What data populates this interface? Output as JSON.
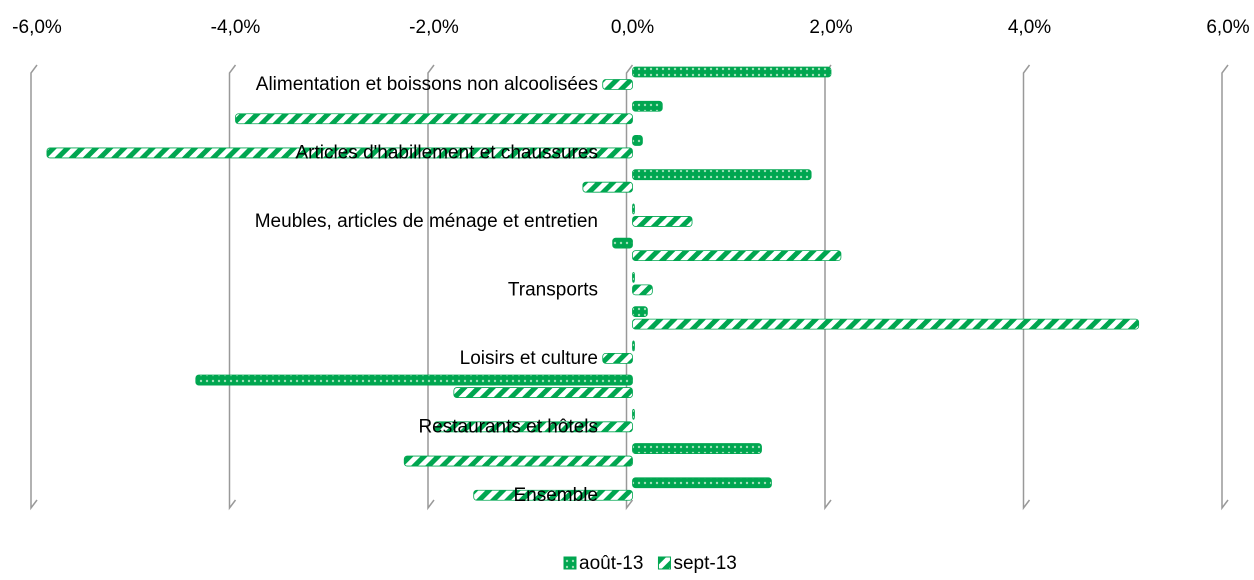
{
  "chart_data": {
    "type": "hbar",
    "categories": [
      "Alimentation et boissons non alcoolisées",
      null,
      "Articles d'habillement et chaussures",
      null,
      "Meubles, articles de ménage et entretien",
      null,
      "Transports",
      null,
      "Loisirs et culture",
      null,
      "Restaurants et hôtels",
      null,
      "Ensemble"
    ],
    "series": [
      {
        "name": "août-13",
        "color": "#00a650",
        "values": [
          2.0,
          0.3,
          0.1,
          1.8,
          0.02,
          -0.2,
          0.02,
          0.15,
          0.02,
          -4.4,
          0.02,
          1.3,
          1.4
        ]
      },
      {
        "name": "sept-13",
        "color": "#00a650",
        "values": [
          -0.3,
          -4.0,
          -5.9,
          -0.5,
          0.6,
          2.1,
          0.2,
          5.1,
          -0.3,
          -1.8,
          -2.0,
          -2.3,
          -1.6
        ]
      }
    ],
    "xlim": [
      -6,
      6
    ],
    "xticks": [
      {
        "value": -6,
        "label": "-6,0%"
      },
      {
        "value": -4,
        "label": "-4,0%"
      },
      {
        "value": -2,
        "label": "-2,0%"
      },
      {
        "value": 0,
        "label": "0,0%"
      },
      {
        "value": 2,
        "label": "2,0%"
      },
      {
        "value": 4,
        "label": "4,0%"
      },
      {
        "value": 6,
        "label": "6,0%"
      }
    ],
    "grid": true,
    "legend": "bottom"
  }
}
